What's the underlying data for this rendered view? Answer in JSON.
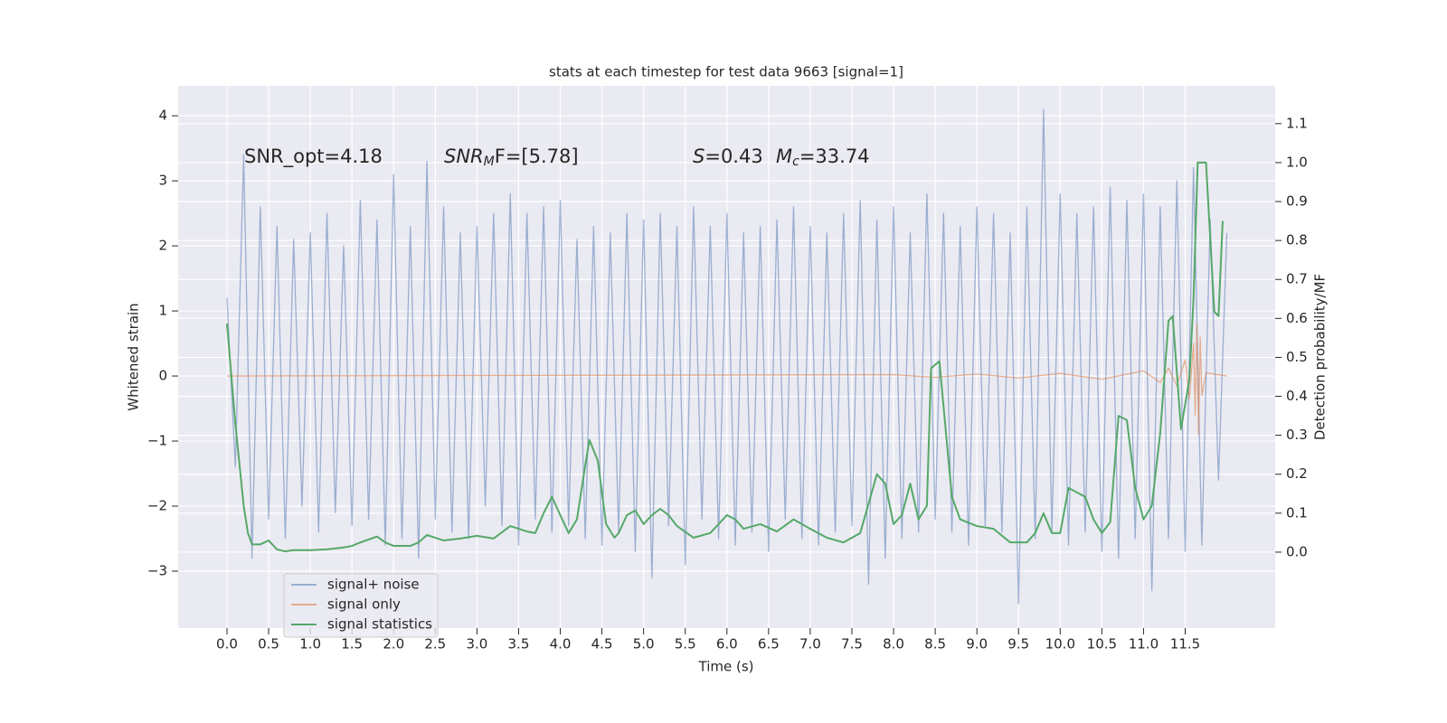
{
  "chart_data": {
    "type": "line",
    "title": "stats at each timestep for test data 9663 [signal=1]",
    "x_label": "Time (s)",
    "y_label": "Whitened strain",
    "y2_label": "Detection probability/MF",
    "xlim": [
      -0.586,
      12.58
    ],
    "ylim": [
      -3.875,
      4.46
    ],
    "y2lim": [
      -0.195,
      1.197
    ],
    "xticks": [
      {
        "value": 0,
        "label": "0.0"
      },
      0.5,
      {
        "value": 1,
        "label": "1.0"
      },
      1.5,
      {
        "value": 2,
        "label": "2.0"
      },
      2.5,
      {
        "value": 3,
        "label": "3.0"
      },
      3.5,
      {
        "value": 4,
        "label": "4.0"
      },
      4.5,
      {
        "value": 5,
        "label": "5.0"
      },
      5.5,
      {
        "value": 6,
        "label": "6.0"
      },
      6.5,
      {
        "value": 7,
        "label": "7.0"
      },
      7.5,
      {
        "value": 8,
        "label": "8.0"
      },
      8.5,
      {
        "value": 9,
        "label": "9.0"
      },
      9.5,
      {
        "value": 10,
        "label": "10.0"
      },
      10.5,
      {
        "value": 11,
        "label": "11.0"
      },
      11.5
    ],
    "yticks": [
      {
        "value": -3,
        "label": "−3"
      },
      {
        "value": -2,
        "label": "−2"
      },
      {
        "value": -1,
        "label": "−1"
      },
      0,
      1,
      2,
      3,
      4
    ],
    "y2ticks": [
      {
        "value": 0,
        "label": "0.0"
      },
      0.1,
      0.2,
      0.3,
      0.4,
      0.5,
      0.6,
      0.7,
      0.8,
      0.9,
      {
        "value": 1,
        "label": "1.0"
      },
      1.1
    ],
    "grid": true,
    "legend": "lower left",
    "annotations": [
      [
        {
          "text": "SNR_opt=4.18",
          "style": "normal"
        }
      ],
      [
        {
          "text": "SNR",
          "style": "italic"
        },
        {
          "text": "M",
          "style": "sub"
        },
        {
          "text": "F=[5.78]",
          "style": "normal"
        }
      ],
      [
        {
          "text": "S",
          "style": "italic"
        },
        {
          "text": "=0.43",
          "style": "normal"
        }
      ],
      [
        {
          "text": "M",
          "style": "italic"
        },
        {
          "text": "c",
          "style": "sub"
        },
        {
          "text": "=33.74",
          "style": "normal"
        }
      ]
    ],
    "series": [
      {
        "name": "signal+ noise",
        "color": "#4c72b0",
        "opacity": 0.5,
        "axis": "y",
        "x": [
          0,
          0.1,
          0.2,
          0.3,
          0.4,
          0.5,
          0.6,
          0.7,
          0.8,
          0.9,
          1,
          1.1,
          1.2,
          1.3,
          1.4,
          1.5,
          1.6,
          1.7,
          1.8,
          1.9,
          2,
          2.1,
          2.2,
          2.3,
          2.4,
          2.5,
          2.6,
          2.7,
          2.8,
          2.9,
          3,
          3.1,
          3.2,
          3.3,
          3.4,
          3.5,
          3.6,
          3.7,
          3.8,
          3.9,
          4,
          4.1,
          4.2,
          4.3,
          4.4,
          4.5,
          4.6,
          4.7,
          4.8,
          4.9,
          5,
          5.1,
          5.2,
          5.3,
          5.4,
          5.5,
          5.6,
          5.7,
          5.8,
          5.9,
          6,
          6.1,
          6.2,
          6.3,
          6.4,
          6.5,
          6.6,
          6.7,
          6.8,
          6.9,
          7,
          7.1,
          7.2,
          7.3,
          7.4,
          7.5,
          7.6,
          7.7,
          7.8,
          7.9,
          8,
          8.1,
          8.2,
          8.3,
          8.4,
          8.5,
          8.6,
          8.7,
          8.8,
          8.9,
          9,
          9.1,
          9.2,
          9.3,
          9.4,
          9.5,
          9.6,
          9.7,
          9.8,
          9.9,
          10,
          10.1,
          10.2,
          10.3,
          10.4,
          10.5,
          10.6,
          10.7,
          10.8,
          10.9,
          11,
          11.1,
          11.2,
          11.3,
          11.4,
          11.5,
          11.6,
          11.7,
          11.8,
          11.9,
          12
        ],
        "values": [
          1.2,
          -1.4,
          3.4,
          -2.8,
          2.6,
          -2.2,
          2.3,
          -2.5,
          2.1,
          -2.0,
          2.2,
          -2.4,
          2.5,
          -2.1,
          2.0,
          -2.3,
          2.7,
          -2.2,
          2.4,
          -2.6,
          3.1,
          -2.5,
          2.3,
          -2.8,
          3.3,
          -2.2,
          2.6,
          -2.4,
          2.2,
          -2.5,
          2.3,
          -2.0,
          2.5,
          -2.3,
          2.8,
          -2.6,
          2.5,
          -2.2,
          2.6,
          -2.4,
          2.7,
          -2.3,
          2.1,
          -2.5,
          2.3,
          -2.6,
          2.2,
          -2.4,
          2.5,
          -2.7,
          2.4,
          -3.1,
          2.5,
          -2.3,
          2.3,
          -2.9,
          2.6,
          -2.2,
          2.3,
          -2.5,
          2.5,
          -2.6,
          2.2,
          -2.4,
          2.3,
          -2.7,
          2.4,
          -2.2,
          2.6,
          -2.5,
          2.3,
          -2.6,
          2.2,
          -2.4,
          2.5,
          -2.3,
          2.7,
          -3.2,
          2.4,
          -2.8,
          2.6,
          -2.5,
          2.2,
          -2.4,
          2.8,
          -2.2,
          2.5,
          -2.4,
          2.3,
          -2.6,
          2.6,
          -2.3,
          2.5,
          -2.4,
          2.2,
          -3.5,
          2.6,
          -2.5,
          4.1,
          -2.4,
          2.8,
          -2.6,
          2.5,
          -2.4,
          2.6,
          -2.7,
          2.9,
          -2.8,
          2.7,
          -2.5,
          2.8,
          -3.3,
          2.6,
          -2.5,
          3.0,
          -2.7,
          3.2,
          -2.6,
          2.4,
          -1.6,
          2.2
        ]
      },
      {
        "name": "signal only",
        "color": "#dd8452",
        "opacity": 0.6,
        "axis": "y",
        "x": [
          0,
          8.0,
          8.5,
          9.0,
          9.5,
          10.0,
          10.5,
          11.0,
          11.2,
          11.3,
          11.4,
          11.5,
          11.55,
          11.6,
          11.62,
          11.64,
          11.66,
          11.68,
          11.7,
          11.75,
          12.0
        ],
        "values": [
          0,
          0.02,
          -0.02,
          0.03,
          -0.03,
          0.04,
          -0.05,
          0.08,
          -0.1,
          0.12,
          -0.15,
          0.25,
          -0.35,
          0.5,
          -0.6,
          0.8,
          -0.9,
          0.6,
          -0.3,
          0.05,
          0
        ]
      },
      {
        "name": "signal statistics",
        "color": "#55a868",
        "opacity": 1,
        "axis": "y2",
        "x": [
          0,
          0.1,
          0.2,
          0.25,
          0.3,
          0.4,
          0.5,
          0.6,
          0.7,
          0.8,
          1.0,
          1.2,
          1.4,
          1.5,
          1.6,
          1.8,
          1.9,
          2.0,
          2.2,
          2.3,
          2.4,
          2.6,
          2.8,
          3.0,
          3.2,
          3.4,
          3.6,
          3.7,
          3.8,
          3.9,
          4.0,
          4.1,
          4.2,
          4.3,
          4.35,
          4.45,
          4.55,
          4.65,
          4.7,
          4.8,
          4.9,
          5.0,
          5.1,
          5.2,
          5.3,
          5.4,
          5.6,
          5.8,
          6.0,
          6.1,
          6.2,
          6.4,
          6.6,
          6.8,
          7.0,
          7.2,
          7.4,
          7.6,
          7.8,
          7.9,
          8.0,
          8.1,
          8.2,
          8.3,
          8.4,
          8.45,
          8.55,
          8.7,
          8.8,
          9.0,
          9.2,
          9.4,
          9.6,
          9.7,
          9.8,
          9.9,
          10.0,
          10.1,
          10.3,
          10.4,
          10.5,
          10.6,
          10.7,
          10.8,
          10.9,
          11.0,
          11.1,
          11.2,
          11.3,
          11.35,
          11.45,
          11.55,
          11.6,
          11.65,
          11.75,
          11.85,
          11.9,
          11.95
        ],
        "values": [
          0.587,
          0.33,
          0.12,
          0.05,
          0.02,
          0.02,
          0.03,
          0.007,
          0.002,
          0.005,
          0.005,
          0.007,
          0.012,
          0.016,
          0.025,
          0.04,
          0.025,
          0.016,
          0.016,
          0.025,
          0.044,
          0.03,
          0.035,
          0.042,
          0.035,
          0.067,
          0.053,
          0.049,
          0.1,
          0.142,
          0.095,
          0.049,
          0.084,
          0.223,
          0.288,
          0.235,
          0.072,
          0.037,
          0.049,
          0.095,
          0.107,
          0.072,
          0.095,
          0.111,
          0.095,
          0.067,
          0.037,
          0.049,
          0.095,
          0.084,
          0.06,
          0.072,
          0.053,
          0.084,
          0.06,
          0.037,
          0.025,
          0.049,
          0.2,
          0.176,
          0.072,
          0.095,
          0.176,
          0.084,
          0.119,
          0.472,
          0.49,
          0.142,
          0.084,
          0.067,
          0.06,
          0.025,
          0.025,
          0.049,
          0.1,
          0.049,
          0.049,
          0.165,
          0.142,
          0.084,
          0.049,
          0.077,
          0.35,
          0.339,
          0.165,
          0.084,
          0.119,
          0.305,
          0.594,
          0.606,
          0.316,
          0.443,
          0.65,
          1.0,
          1.0,
          0.617,
          0.606,
          0.85
        ]
      }
    ]
  }
}
